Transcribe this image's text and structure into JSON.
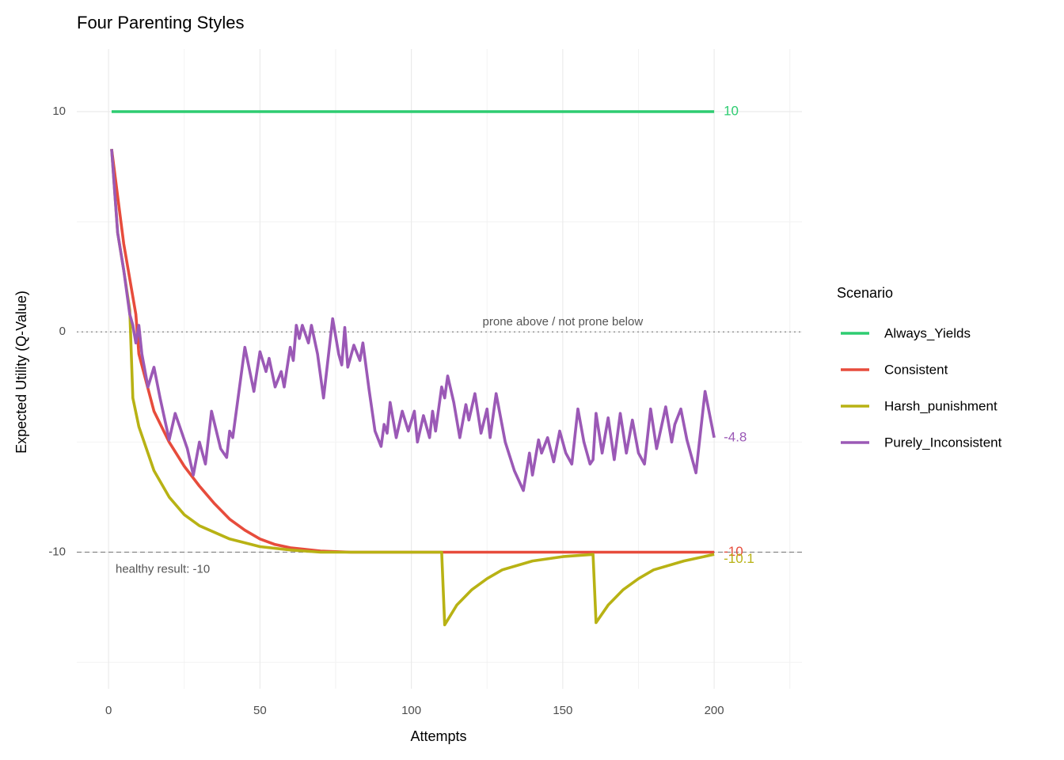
{
  "chart_data": {
    "type": "line",
    "title": "Four Parenting Styles",
    "x_label": "Attempts",
    "y_label": "Expected Utility (Q-Value)",
    "legend_title": "Scenario",
    "legend_position": "right",
    "grid": true,
    "xlim": [
      -10.5,
      229
    ],
    "ylim": [
      -16.2,
      12.84
    ],
    "xticks": [
      0,
      50,
      100,
      150,
      200
    ],
    "yticks": [
      -10,
      0,
      10
    ],
    "xminor": [
      25,
      75,
      125,
      175,
      225
    ],
    "yminor": [
      -15,
      -5,
      5
    ],
    "reference_lines": [
      {
        "value": 0,
        "label": "prone above / not prone below",
        "style": "dotted"
      },
      {
        "value": -10,
        "label": "healthy result: -10",
        "style": "dashed"
      }
    ],
    "series": [
      {
        "name": "Always_Yields",
        "color": "#2ecc71",
        "x": [
          1,
          200
        ],
        "values": [
          10,
          10
        ]
      },
      {
        "name": "Consistent",
        "color": "#e74c3c",
        "x": [
          1,
          5,
          9,
          10,
          15,
          20,
          25,
          30,
          35,
          40,
          45,
          50,
          55,
          60,
          70,
          80,
          200
        ],
        "values": [
          8.3,
          4,
          0.8,
          -1,
          -3.6,
          -5,
          -6.1,
          -7,
          -7.8,
          -8.5,
          -9,
          -9.4,
          -9.65,
          -9.8,
          -9.95,
          -10,
          -10
        ]
      },
      {
        "name": "Harsh_punishment",
        "color": "#b8b214",
        "x": [
          1,
          3,
          5,
          7,
          8,
          10,
          15,
          20,
          25,
          30,
          40,
          50,
          60,
          70,
          110,
          111,
          115,
          120,
          125,
          130,
          140,
          150,
          160,
          161,
          165,
          170,
          175,
          180,
          190,
          200
        ],
        "values": [
          8.3,
          4.5,
          2.8,
          1,
          -3,
          -4.3,
          -6.3,
          -7.5,
          -8.3,
          -8.8,
          -9.4,
          -9.75,
          -9.9,
          -10,
          -10,
          -13.3,
          -12.4,
          -11.7,
          -11.2,
          -10.8,
          -10.4,
          -10.2,
          -10.1,
          -13.2,
          -12.4,
          -11.7,
          -11.2,
          -10.8,
          -10.4,
          -10.1
        ]
      },
      {
        "name": "Purely_Inconsistent",
        "color": "#9b59b6",
        "x": [
          1,
          3,
          5,
          7,
          8,
          9,
          10,
          11,
          13,
          15,
          17,
          20,
          22,
          26,
          28,
          30,
          32,
          34,
          37,
          39,
          40,
          41,
          45,
          48,
          50,
          52,
          53,
          55,
          57,
          58,
          60,
          61,
          62,
          63,
          64,
          66,
          67,
          69,
          71,
          74,
          76,
          77,
          78,
          79,
          81,
          83,
          84,
          86,
          88,
          90,
          91,
          92,
          93,
          95,
          97,
          99,
          101,
          102,
          104,
          106,
          107,
          108,
          110,
          111,
          112,
          114,
          116,
          118,
          119,
          121,
          123,
          125,
          126,
          128,
          131,
          134,
          137,
          139,
          140,
          142,
          143,
          145,
          147,
          149,
          151,
          153,
          155,
          157,
          159,
          160,
          161,
          163,
          165,
          167,
          169,
          171,
          173,
          175,
          177,
          179,
          181,
          184,
          186,
          187,
          189,
          191,
          194,
          197,
          200
        ],
        "values": [
          8.3,
          4.5,
          2.8,
          0.8,
          0.3,
          -0.5,
          0.3,
          -1,
          -2.5,
          -1.6,
          -3,
          -4.9,
          -3.7,
          -5.3,
          -6.5,
          -5,
          -6,
          -3.6,
          -5.3,
          -5.7,
          -4.5,
          -4.8,
          -0.7,
          -2.7,
          -0.9,
          -1.8,
          -1.2,
          -2.5,
          -1.8,
          -2.5,
          -0.7,
          -1.3,
          0.3,
          -0.3,
          0.3,
          -0.5,
          0.3,
          -1,
          -3,
          0.6,
          -1,
          -1.5,
          0.2,
          -1.6,
          -0.6,
          -1.3,
          -0.5,
          -2.6,
          -4.5,
          -5.2,
          -4.2,
          -4.6,
          -3.2,
          -4.8,
          -3.6,
          -4.5,
          -3.6,
          -5,
          -3.8,
          -4.8,
          -3.6,
          -4.5,
          -2.5,
          -3,
          -2,
          -3.2,
          -4.8,
          -3.3,
          -4,
          -2.8,
          -4.6,
          -3.5,
          -4.8,
          -2.8,
          -5,
          -6.3,
          -7.2,
          -5.5,
          -6.5,
          -4.9,
          -5.5,
          -4.8,
          -5.9,
          -4.5,
          -5.5,
          -6,
          -3.5,
          -5,
          -6,
          -5.8,
          -3.7,
          -5.5,
          -3.9,
          -5.8,
          -3.7,
          -5.5,
          -4,
          -5.5,
          -6,
          -3.5,
          -5.3,
          -3.4,
          -5,
          -4.2,
          -3.5,
          -4.9,
          -6.4,
          -2.7,
          -4.8
        ]
      }
    ]
  }
}
